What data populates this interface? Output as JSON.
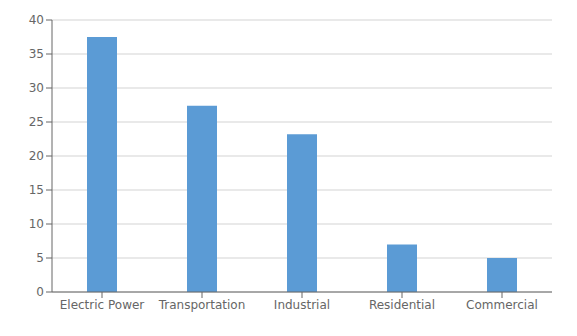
{
  "chart_data": {
    "type": "bar",
    "categories": [
      "Electric Power",
      "Transportation",
      "Industrial",
      "Residential",
      "Commercial"
    ],
    "values": [
      37.5,
      27.4,
      23.2,
      7.0,
      5.0
    ],
    "color": "#5B9BD5",
    "ylim": [
      0,
      40
    ],
    "yticks": [
      0,
      5,
      10,
      15,
      20,
      25,
      30,
      35,
      40
    ],
    "grid": true
  }
}
